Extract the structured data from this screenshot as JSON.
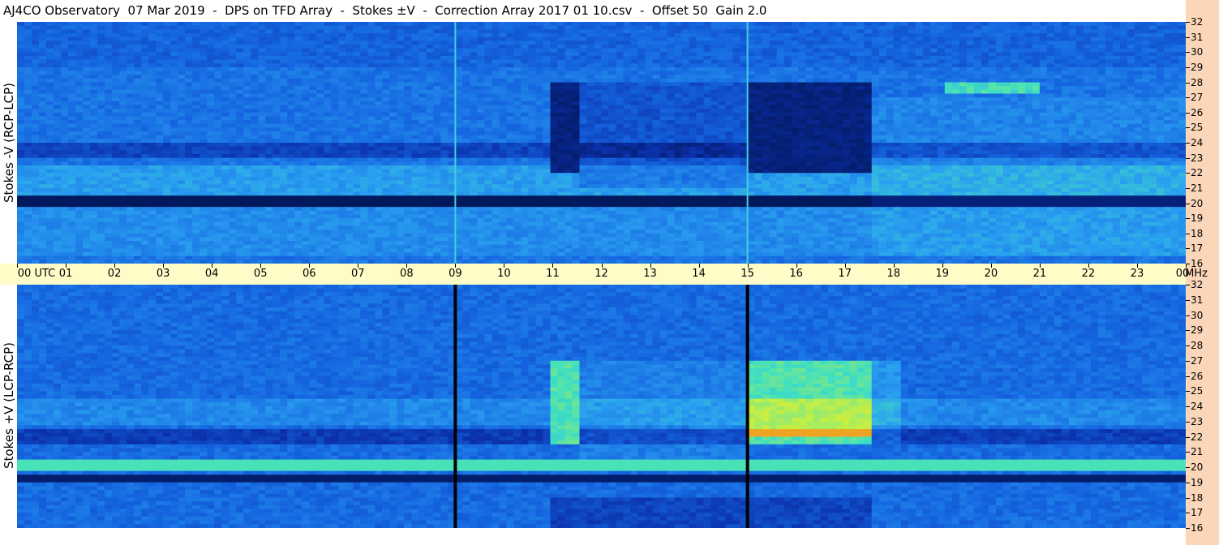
{
  "title": "AJ4CO Observatory  07 Mar 2019  -  DPS on TFD Array  -  Stokes ±V  -  Correction Array 2017 01 10.csv  -  Offset 50  Gain 2.0",
  "panels": {
    "top": {
      "label": "Stokes -V (RCP-LCP)"
    },
    "bottom": {
      "label": "Stokes +V (LCP-RCP)"
    }
  },
  "chart_data": {
    "type": "heatmap",
    "title": "AJ4CO Observatory  07 Mar 2019  -  DPS on TFD Array  -  Stokes ±V  -  Correction Array 2017 01 10.csv  -  Offset 50  Gain 2.0",
    "x_axis": {
      "unit": "UTC",
      "range": [
        0,
        24
      ],
      "ticks": [
        "00 UTC",
        "01",
        "02",
        "03",
        "04",
        "05",
        "06",
        "07",
        "08",
        "09",
        "10",
        "11",
        "12",
        "13",
        "14",
        "15",
        "16",
        "17",
        "18",
        "19",
        "20",
        "21",
        "22",
        "23",
        "00"
      ]
    },
    "y_axis": {
      "unit": "MHz",
      "range": [
        16,
        32
      ],
      "ticks": [
        "16",
        "17",
        "18",
        "19",
        "20",
        "21",
        "22",
        "23",
        "24",
        "25",
        "26",
        "27",
        "28",
        "29",
        "30",
        "31",
        "32"
      ]
    },
    "panels": [
      {
        "name": "Stokes -V (RCP-LCP)",
        "position": "top"
      },
      {
        "name": "Stokes +V (LCP-RCP)",
        "position": "bottom"
      }
    ],
    "colormap": [
      "#001040",
      "#0a2fa8",
      "#1565e0",
      "#2aa0f0",
      "#40e0c0",
      "#c8f040",
      "#f0a020",
      "#e03020"
    ]
  }
}
